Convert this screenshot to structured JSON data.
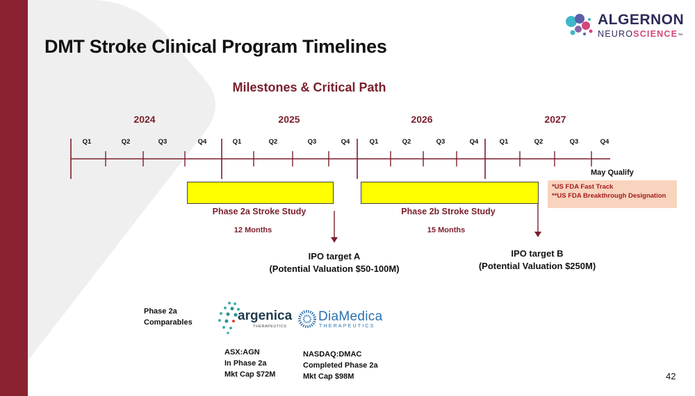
{
  "title": "DMT Stroke Clinical Program Timelines",
  "subtitle": "Milestones & Critical Path",
  "logo": {
    "line1": "ALGERNON",
    "line2_a": "NEURO",
    "line2_b": "SCIENCE",
    "tm": "™"
  },
  "years": [
    "2024",
    "2025",
    "2026",
    "2027"
  ],
  "quarter_labels": [
    "Q1",
    "Q2",
    "Q3",
    "Q4",
    "Q1",
    "Q2",
    "Q3",
    "Q4",
    "Q1",
    "Q2",
    "Q3",
    "Q4",
    "Q1",
    "Q2",
    "Q3",
    "Q4"
  ],
  "phase2a": {
    "label": "Phase 2a Stroke Study",
    "duration": "12 Months"
  },
  "phase2b": {
    "label": "Phase 2b Stroke Study",
    "duration": "15 Months"
  },
  "ipo_a": {
    "line1": "IPO target A",
    "line2": "(Potential Valuation $50-100M)"
  },
  "ipo_b": {
    "line1": "IPO target B",
    "line2": "(Potential Valuation $250M)"
  },
  "qualify": {
    "label": "May Qualify",
    "line1": "*US FDA Fast Track",
    "line2": "**US FDA Breakthrough Designation"
  },
  "comparables": {
    "label_line1": "Phase 2a",
    "label_line2": "Comparables",
    "argenica": {
      "logo_name": "argenica",
      "logo_sub": "THERAPEUTICS",
      "ticker": "ASX:AGN",
      "status": "In Phase 2a",
      "mktcap": "Mkt Cap $72M"
    },
    "diamedica": {
      "logo_name": "DiaMedica",
      "logo_sub": "THERAPEUTICS",
      "ticker": "NASDAQ:DMAC",
      "status": "Completed Phase 2a",
      "mktcap": "Mkt Cap $98M"
    }
  },
  "page_number": "42",
  "colors": {
    "accent": "#8a2231",
    "title_red": "#7a1f2b",
    "phase_bar": "#ffff00",
    "qualify_bg": "#f8d4bf",
    "qualify_text": "#a41c1c"
  }
}
